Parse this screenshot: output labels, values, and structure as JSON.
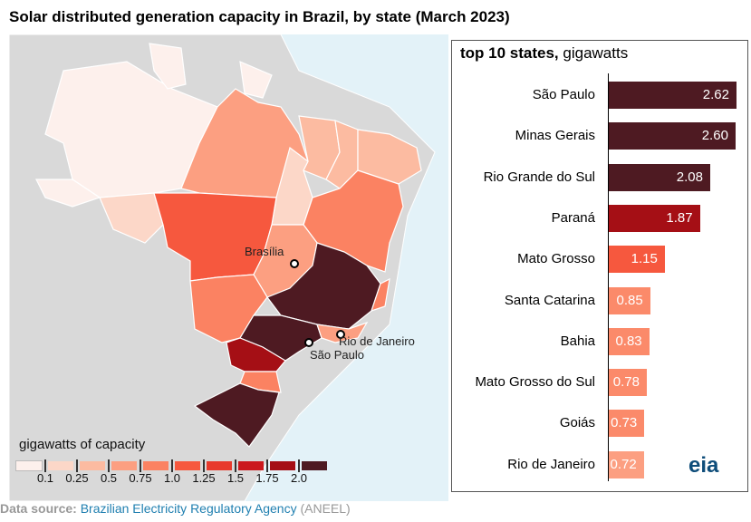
{
  "title": "Solar distributed generation capacity in Brazil, by state (March 2023)",
  "legend": {
    "title": "gigawatts of capacity",
    "labels": [
      "0.1",
      "0.25",
      "0.5",
      "0.75",
      "1.0",
      "1.25",
      "1.5",
      "1.75",
      "2.0"
    ],
    "colors": [
      "#fdf0ec",
      "#fcd7c8",
      "#fcbba1",
      "#fc9f81",
      "#fb8262",
      "#f6583e",
      "#e8392c",
      "#cb181d",
      "#a50f15",
      "#4e1a22"
    ]
  },
  "cities": {
    "brasilia": "Brasília",
    "rio": "Rio de Janeiro",
    "saopaulo": "São Paulo"
  },
  "panel": {
    "title_bold": "top 10 states,",
    "title_rest": " gigawatts"
  },
  "chart_data": {
    "type": "bar",
    "title": "top 10 states, gigawatts",
    "categories": [
      "São Paulo",
      "Minas Gerais",
      "Rio Grande do Sul",
      "Paraná",
      "Mato Grosso",
      "Santa Catarina",
      "Bahia",
      "Mato Grosso do Sul",
      "Goiás",
      "Rio de Janeiro"
    ],
    "values": [
      2.62,
      2.6,
      2.08,
      1.87,
      1.15,
      0.85,
      0.83,
      0.78,
      0.73,
      0.72
    ],
    "labels": [
      "2.62",
      "2.60",
      "2.08",
      "1.87",
      "1.15",
      "0.85",
      "0.83",
      "0.78",
      "0.73",
      "0.72"
    ],
    "colors": [
      "#4e1a22",
      "#4e1a22",
      "#4e1a22",
      "#a50f15",
      "#f6583e",
      "#fb8a6a",
      "#fb8a6a",
      "#fb8a6a",
      "#fb8a6a",
      "#fc9f81"
    ]
  },
  "source": {
    "label": "Data source:",
    "agency": "Brazilian Electricity Regulatory Agency",
    "abbr": "(ANEEL)"
  },
  "logo": "eia"
}
